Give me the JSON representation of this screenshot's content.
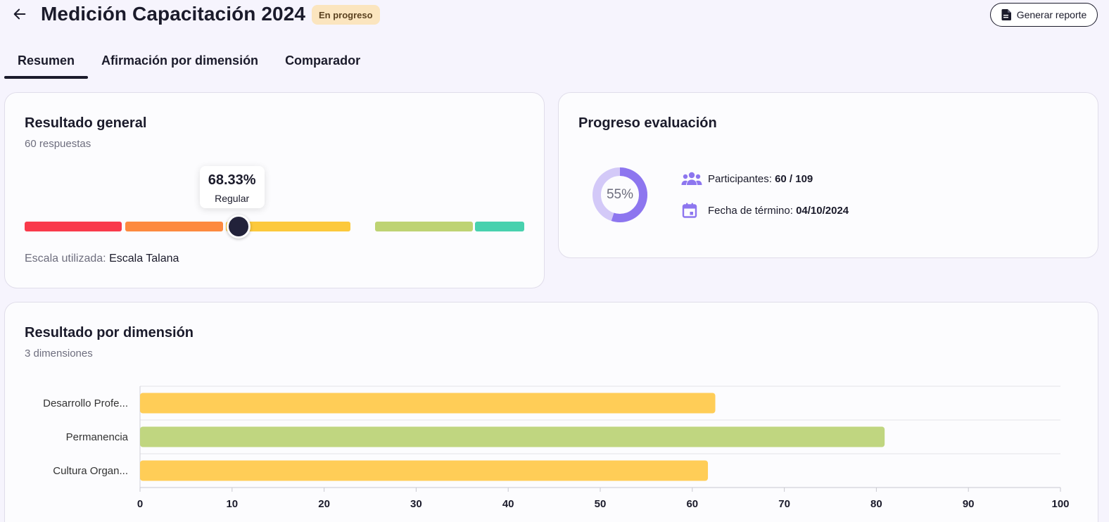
{
  "header": {
    "title": "Medición Capacitación 2024",
    "status": "En progreso",
    "report_button": "Generar reporte"
  },
  "tabs": [
    {
      "label": "Resumen",
      "active": true
    },
    {
      "label": "Afirmación por dimensión",
      "active": false
    },
    {
      "label": "Comparador",
      "active": false
    }
  ],
  "general": {
    "title": "Resultado general",
    "subtitle": "60 respuestas",
    "value_text": "68.33%",
    "value": 68.33,
    "rating": "Regular",
    "scale_label": "Escala utilizada:",
    "scale_name": "Escala Talana",
    "scale_colors": [
      "#f93a4b",
      "#fd8a3f",
      "#fcc93c",
      "#bed373",
      "#48d1ae"
    ]
  },
  "progress": {
    "title": "Progreso evaluación",
    "percent_text": "55%",
    "percent": 55,
    "participants_label": "Participantes:",
    "participants_value": "60 / 109",
    "end_date_label": "Fecha de término:",
    "end_date_value": "04/10/2024",
    "colors": {
      "fill": "#8d76ef",
      "track": "#d3c9f8"
    }
  },
  "dimension": {
    "title": "Resultado por dimensión",
    "subtitle": "3 dimensiones"
  },
  "chart_data": {
    "type": "bar",
    "orientation": "horizontal",
    "categories": [
      "Desarrollo Profe...",
      "Permanencia",
      "Cultura Organ..."
    ],
    "values": [
      62.5,
      80.9,
      61.7
    ],
    "colors": [
      "#ffcd57",
      "#c0d680",
      "#ffcd57"
    ],
    "xlim": [
      0,
      100
    ],
    "xticks": [
      0,
      10,
      20,
      30,
      40,
      50,
      60,
      70,
      80,
      90,
      100
    ],
    "grid": true
  }
}
